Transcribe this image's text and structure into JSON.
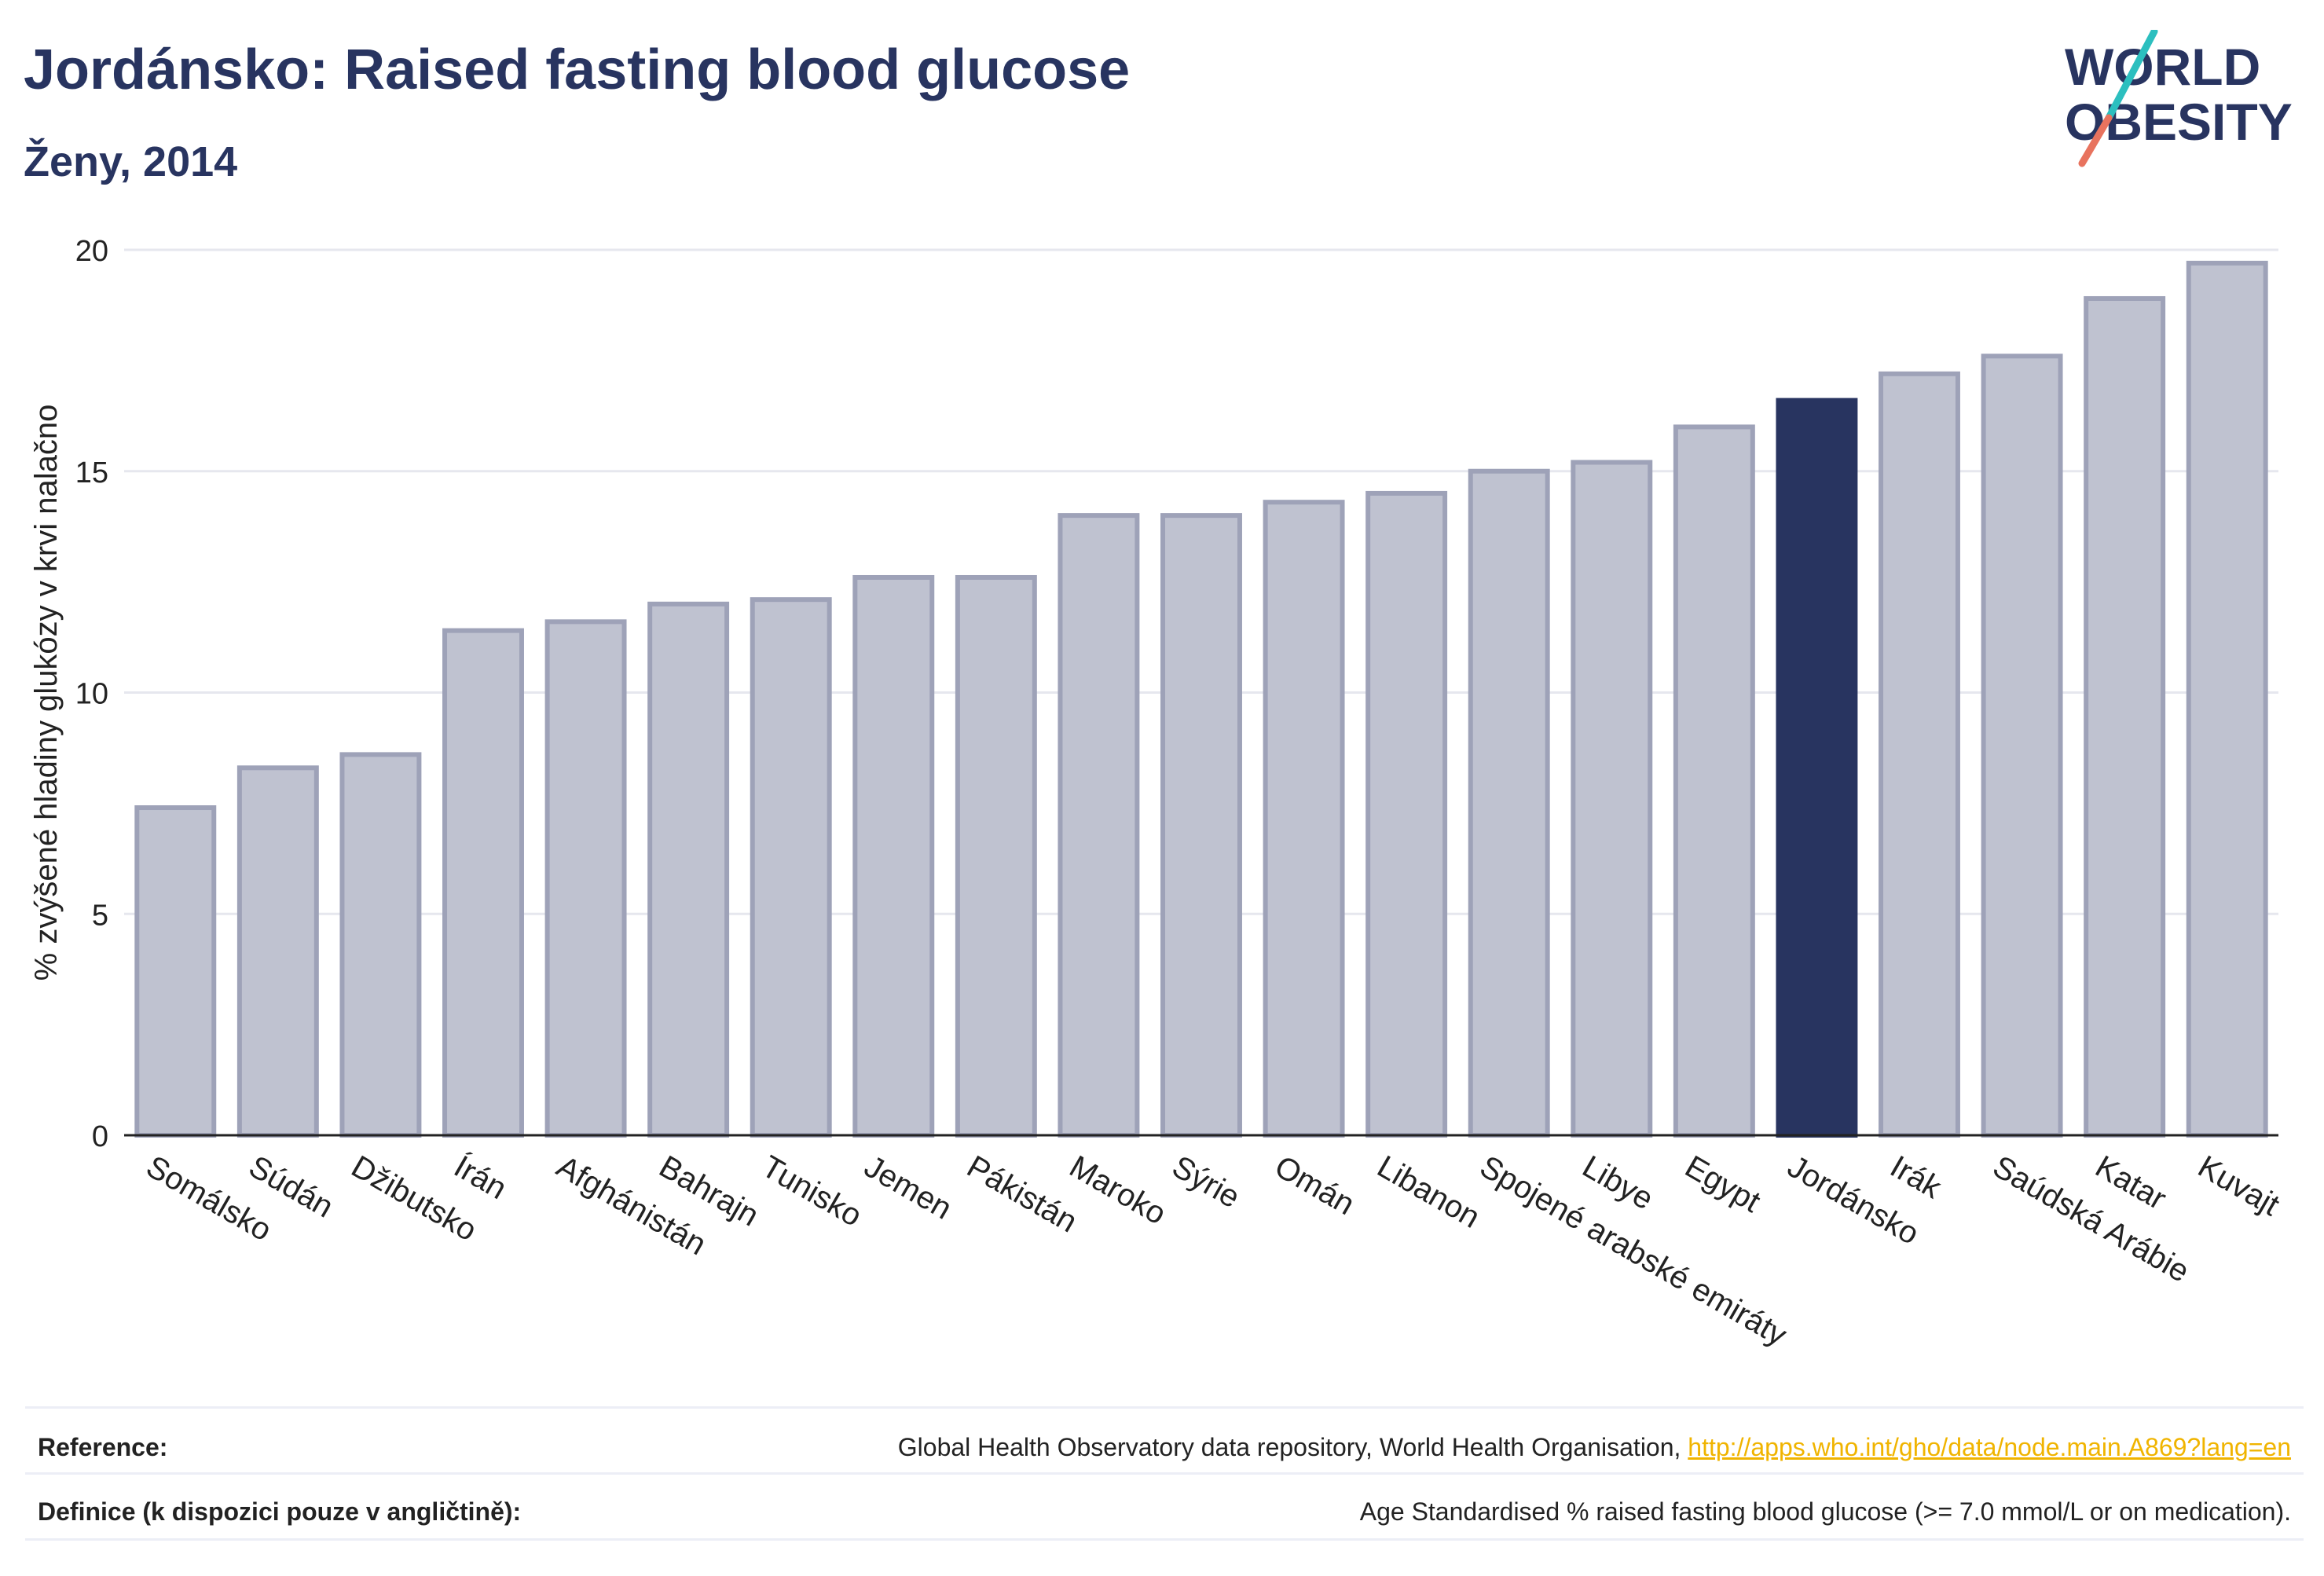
{
  "header": {
    "title": "Jordánsko: Raised fasting blood glucose",
    "subtitle": "Ženy, 2014"
  },
  "logo": {
    "line1": "WORLD",
    "line2": "OBESITY"
  },
  "chart_data": {
    "type": "bar",
    "ylabel": "% zvýšené hladiny glukózy v krvi nalačno",
    "ylim": [
      0,
      20
    ],
    "yticks": [
      0,
      5,
      10,
      15,
      20
    ],
    "grid": true,
    "highlight": "Jordánsko",
    "colors": {
      "bar": "#bfc2d0",
      "bar_edge": "#9ea2b8",
      "highlight": "#283460"
    },
    "categories": [
      "Somálsko",
      "Súdán",
      "Džibutsko",
      "Írán",
      "Afghánistán",
      "Bahrajn",
      "Tunisko",
      "Jemen",
      "Pákistán",
      "Maroko",
      "Sýrie",
      "Omán",
      "Libanon",
      "Spojené arabské emiráty",
      "Libye",
      "Egypt",
      "Jordánsko",
      "Irák",
      "Saúdská Arábie",
      "Katar",
      "Kuvajt"
    ],
    "values": [
      7.4,
      8.3,
      8.6,
      11.4,
      11.6,
      12.0,
      12.1,
      12.6,
      12.6,
      14.0,
      14.0,
      14.3,
      14.5,
      15.0,
      15.2,
      16.0,
      16.6,
      17.2,
      17.6,
      18.9,
      19.7
    ]
  },
  "footer": {
    "reference_label": "Reference:",
    "reference_text": "Global Health Observatory data repository, World Health Organisation,",
    "reference_link": "http://apps.who.int/gho/data/node.main.A869?lang=en",
    "definition_label": "Definice (k dispozici pouze v angličtině):",
    "definition_text": "Age Standardised % raised fasting blood glucose (>= 7.0 mmol/L or on medication)."
  }
}
